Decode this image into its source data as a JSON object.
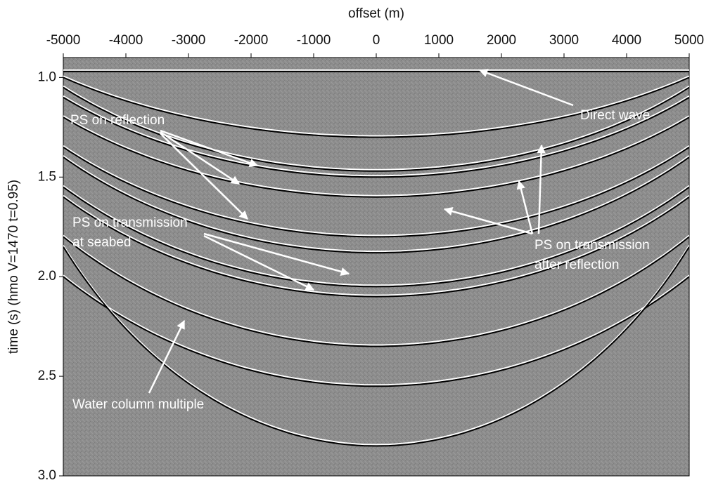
{
  "chart_data": {
    "type": "seismic",
    "xlabel": "offset (m)",
    "ylabel": "time (s) (hmo V=1470 t=0.95)",
    "xlim": [
      -5000,
      5000
    ],
    "xticks": [
      -5000,
      -4000,
      -3000,
      -2000,
      -1000,
      0,
      1000,
      2000,
      3000,
      4000,
      5000
    ],
    "ylim": [
      0.9,
      3.0
    ],
    "yticks": [
      {
        "value": 1.0,
        "label": "1.0"
      },
      1.5,
      {
        "value": 2.0,
        "label": "2.0"
      },
      2.5,
      {
        "value": 3.0,
        "label": "3.0"
      }
    ],
    "events": [
      {
        "t0": 0.97,
        "t_edge": 0.97
      },
      {
        "t0": 1.3,
        "t_edge": 1.0
      },
      {
        "t0": 1.47,
        "t_edge": 1.05
      },
      {
        "t0": 1.5,
        "t_edge": 1.1
      },
      {
        "t0": 1.6,
        "t_edge": 1.2
      },
      {
        "t0": 1.8,
        "t_edge": 1.35
      },
      {
        "t0": 1.88,
        "t_edge": 1.4
      },
      {
        "t0": 2.05,
        "t_edge": 1.55
      },
      {
        "t0": 2.1,
        "t_edge": 1.6
      },
      {
        "t0": 2.35,
        "t_edge": 1.8
      },
      {
        "t0": 2.55,
        "t_edge": 2.0
      },
      {
        "t0": 2.85,
        "t_edge": 1.85
      }
    ],
    "annotations": {
      "direct_wave": "Direct wave",
      "ps_reflection": "PS on reflection",
      "ps_transmission_seabed": [
        "PS on transmission",
        "at seabed"
      ],
      "ps_transmission_reflection": [
        "PS on transmission",
        "after reflection"
      ],
      "water_multiple": "Water column multiple"
    }
  }
}
